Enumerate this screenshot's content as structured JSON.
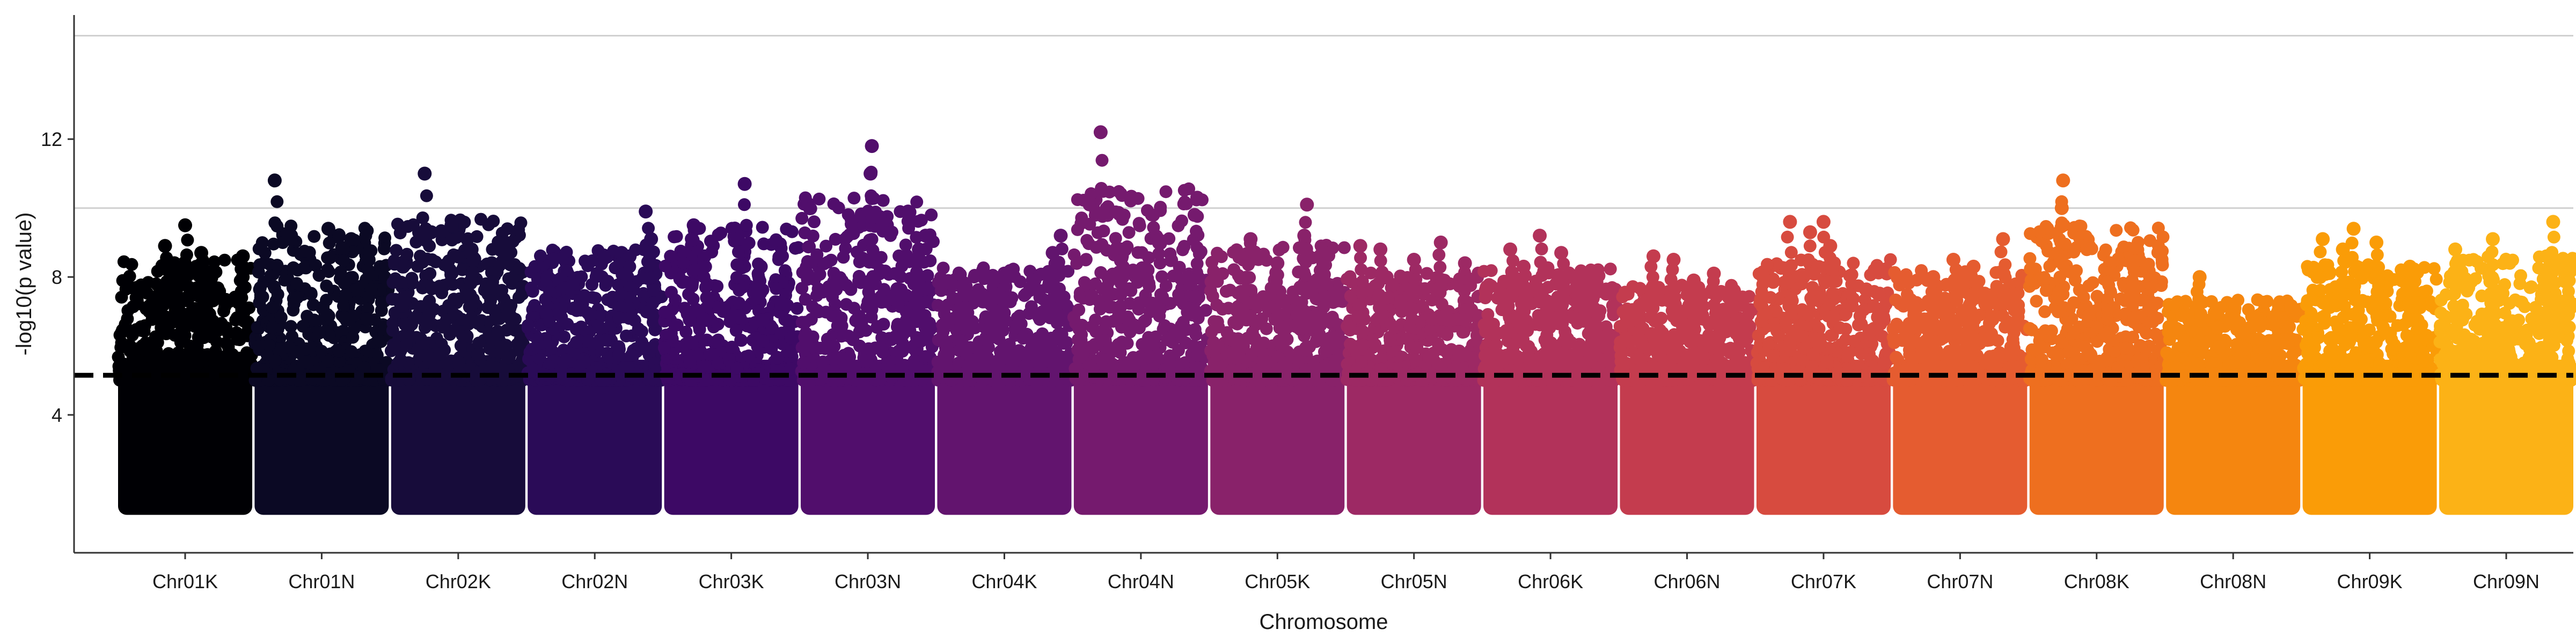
{
  "chart_data": {
    "type": "scatter",
    "subtype": "manhattan",
    "title": "",
    "xlabel": "Chromosome",
    "ylabel": "-log10(p value)",
    "ylim": [
      0,
      15.6
    ],
    "yticks": [
      4,
      8,
      12
    ],
    "grid": "horizontal",
    "legend": "none",
    "threshold": {
      "value": 5.15,
      "style": "dashed",
      "color": "#000000"
    },
    "point_min": 1.1,
    "categories": [
      "Chr01K",
      "Chr01N",
      "Chr02K",
      "Chr02N",
      "Chr03K",
      "Chr03N",
      "Chr04K",
      "Chr04N",
      "Chr05K",
      "Chr05N",
      "Chr06K",
      "Chr06N",
      "Chr07K",
      "Chr07N",
      "Chr08K",
      "Chr08N",
      "Chr09K",
      "Chr09N"
    ],
    "colors": [
      "#000004",
      "#0b0924",
      "#170c3a",
      "#2a0b57",
      "#3d0965",
      "#510e6c",
      "#62146e",
      "#751a6e",
      "#89226a",
      "#9d2964",
      "#b2325a",
      "#c43c4e",
      "#d74b3f",
      "#e55c30",
      "#ee6f1f",
      "#f5860f",
      "#fa9c07",
      "#fcb216"
    ],
    "series": [
      {
        "name": "Chr01K",
        "max": 9.5,
        "top_points": [
          [
            0.5,
            9.5
          ],
          [
            0.35,
            8.9
          ],
          [
            0.62,
            8.7
          ],
          [
            0.93,
            8.6
          ],
          [
            0.42,
            8.4
          ]
        ]
      },
      {
        "name": "Chr01N",
        "max": 10.8,
        "top_points": [
          [
            0.15,
            10.8
          ],
          [
            0.55,
            9.4
          ],
          [
            0.72,
            9.1
          ],
          [
            0.66,
            8.8
          ],
          [
            0.85,
            8.5
          ]
        ]
      },
      {
        "name": "Chr02K",
        "max": 11.0,
        "top_points": [
          [
            0.25,
            11.0
          ],
          [
            0.45,
            9.5
          ],
          [
            0.3,
            9.3
          ],
          [
            0.6,
            8.8
          ],
          [
            0.75,
            8.4
          ]
        ]
      },
      {
        "name": "Chr02N",
        "max": 9.9,
        "top_points": [
          [
            0.88,
            9.9
          ],
          [
            0.92,
            9.1
          ],
          [
            0.7,
            8.7
          ],
          [
            0.76,
            8.6
          ],
          [
            0.15,
            8.0
          ]
        ]
      },
      {
        "name": "Chr03K",
        "max": 10.7,
        "top_points": [
          [
            0.6,
            10.7
          ],
          [
            0.22,
            9.5
          ],
          [
            0.55,
            9.1
          ],
          [
            0.3,
            8.6
          ],
          [
            0.72,
            8.3
          ]
        ]
      },
      {
        "name": "Chr03N",
        "max": 11.8,
        "top_points": [
          [
            0.53,
            11.8
          ],
          [
            0.52,
            11.0
          ],
          [
            0.8,
            9.9
          ],
          [
            0.93,
            9.2
          ],
          [
            0.88,
            8.8
          ]
        ]
      },
      {
        "name": "Chr04K",
        "max": 9.2,
        "top_points": [
          [
            0.92,
            9.2
          ],
          [
            0.86,
            8.7
          ],
          [
            0.5,
            8.1
          ],
          [
            0.42,
            7.7
          ],
          [
            0.2,
            7.6
          ]
        ]
      },
      {
        "name": "Chr04N",
        "max": 12.2,
        "top_points": [
          [
            0.2,
            12.2
          ],
          [
            0.92,
            10.3
          ],
          [
            0.9,
            9.8
          ],
          [
            0.35,
            8.8
          ],
          [
            0.55,
            8.2
          ]
        ]
      },
      {
        "name": "Chr05K",
        "max": 10.1,
        "top_points": [
          [
            0.72,
            10.1
          ],
          [
            0.7,
            9.2
          ],
          [
            0.3,
            9.1
          ],
          [
            0.85,
            8.7
          ],
          [
            0.5,
            8.4
          ]
        ]
      },
      {
        "name": "Chr05N",
        "max": 9.0,
        "top_points": [
          [
            0.7,
            9.0
          ],
          [
            0.1,
            8.9
          ],
          [
            0.25,
            8.8
          ],
          [
            0.5,
            8.5
          ],
          [
            0.88,
            8.4
          ]
        ]
      },
      {
        "name": "Chr06K",
        "max": 9.2,
        "top_points": [
          [
            0.42,
            9.2
          ],
          [
            0.2,
            8.8
          ],
          [
            0.58,
            8.7
          ],
          [
            0.3,
            8.3
          ],
          [
            0.75,
            8.0
          ]
        ]
      },
      {
        "name": "Chr06N",
        "max": 8.6,
        "top_points": [
          [
            0.25,
            8.6
          ],
          [
            0.4,
            8.5
          ],
          [
            0.7,
            8.1
          ],
          [
            0.55,
            7.9
          ],
          [
            0.85,
            7.6
          ]
        ]
      },
      {
        "name": "Chr07K",
        "max": 9.6,
        "top_points": [
          [
            0.25,
            9.6
          ],
          [
            0.5,
            9.6
          ],
          [
            0.4,
            9.3
          ],
          [
            0.55,
            8.9
          ],
          [
            0.05,
            8.0
          ]
        ]
      },
      {
        "name": "Chr07N",
        "max": 9.1,
        "top_points": [
          [
            0.82,
            9.1
          ],
          [
            0.45,
            8.5
          ],
          [
            0.6,
            8.3
          ],
          [
            0.3,
            8.0
          ],
          [
            0.92,
            7.7
          ]
        ]
      },
      {
        "name": "Chr08K",
        "max": 10.8,
        "top_points": [
          [
            0.25,
            10.8
          ],
          [
            0.24,
            10.0
          ],
          [
            0.78,
            8.8
          ],
          [
            0.6,
            8.4
          ],
          [
            0.9,
            7.9
          ]
        ]
      },
      {
        "name": "Chr08N",
        "max": 8.0,
        "top_points": [
          [
            0.25,
            8.0
          ],
          [
            0.5,
            7.2
          ],
          [
            0.7,
            6.9
          ],
          [
            0.88,
            6.8
          ],
          [
            0.4,
            6.6
          ]
        ]
      },
      {
        "name": "Chr09K",
        "max": 9.4,
        "top_points": [
          [
            0.38,
            9.4
          ],
          [
            0.15,
            9.1
          ],
          [
            0.55,
            9.0
          ],
          [
            0.3,
            8.8
          ],
          [
            0.8,
            8.3
          ]
        ]
      },
      {
        "name": "Chr09N",
        "max": 9.6,
        "top_points": [
          [
            0.85,
            9.6
          ],
          [
            0.4,
            9.1
          ],
          [
            0.12,
            8.8
          ],
          [
            0.8,
            8.6
          ],
          [
            0.95,
            8.4
          ]
        ]
      }
    ]
  }
}
